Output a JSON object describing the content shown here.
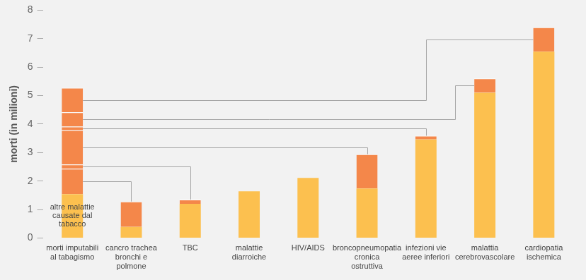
{
  "chart_data": {
    "type": "bar",
    "stacked": true,
    "grid": false,
    "y_label": "morti (in milioni)",
    "annotation": "altre malattie causate dal tabacco",
    "categories": [
      "morti imputabili al tabagismo",
      "cancro trachea bronchi e polmone",
      "TBC",
      "malattie diarroiche",
      "HIV/AIDS",
      "broncopneumopatia cronica ostruttiva",
      "infezioni vie aeree inferiori",
      "malattia cerebrovascolare",
      "cardiopatia ischemica"
    ],
    "ylim": [
      0,
      8
    ],
    "yticks": [
      0,
      1,
      2,
      3,
      4,
      5,
      6,
      7,
      8
    ],
    "series": [
      {
        "color": "#fcc04f",
        "values": [
          1.54,
          0.39,
          1.2,
          1.64,
          2.11,
          1.74,
          3.46,
          5.1,
          6.54
        ]
      },
      {
        "color": "#f4874a",
        "values": [
          0.89,
          0.89,
          null,
          null,
          null,
          null,
          null,
          null,
          null
        ]
      },
      {
        "color": "#f4874a",
        "values": [
          0.15,
          null,
          0.15,
          null,
          null,
          null,
          null,
          null,
          null
        ]
      },
      {
        "color": "#f4874a",
        "values": [
          1.2,
          null,
          null,
          null,
          null,
          1.2,
          null,
          null,
          null
        ]
      },
      {
        "color": "#f4874a",
        "values": [
          0.13,
          null,
          null,
          null,
          null,
          null,
          0.13,
          null,
          null
        ]
      },
      {
        "color": "#f4874a",
        "values": [
          0.5,
          null,
          null,
          null,
          null,
          null,
          null,
          0.5,
          null
        ]
      },
      {
        "color": "#f4874a",
        "values": [
          0.86,
          null,
          null,
          null,
          null,
          null,
          null,
          null,
          0.86
        ]
      }
    ]
  }
}
